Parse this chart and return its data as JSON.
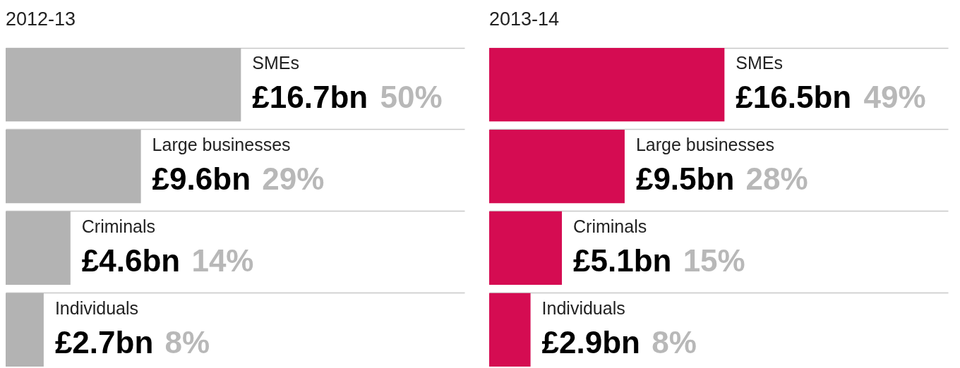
{
  "chart_data": [
    {
      "type": "bar",
      "orientation": "horizontal",
      "title": "2012-13",
      "categories": [
        "SMEs",
        "Large businesses",
        "Criminals",
        "Individuals"
      ],
      "grid": "y",
      "tick_labels": false,
      "series": [
        {
          "color": "#b3b3b3",
          "values": [
            16.7,
            9.6,
            4.6,
            2.7
          ],
          "value_labels": [
            "£16.7bn",
            "£9.6bn",
            "£4.6bn",
            "£2.7bn"
          ]
        }
      ],
      "annotations": [
        "50%",
        "29%",
        "14%",
        "8%"
      ]
    },
    {
      "type": "bar",
      "orientation": "horizontal",
      "title": "2013-14",
      "categories": [
        "SMEs",
        "Large businesses",
        "Criminals",
        "Individuals"
      ],
      "grid": "y",
      "tick_labels": false,
      "series": [
        {
          "color": "#d50c52",
          "values": [
            16.5,
            9.5,
            5.1,
            2.9
          ],
          "value_labels": [
            "£16.5bn",
            "£9.5bn",
            "£5.1bn",
            "£2.9bn"
          ]
        }
      ],
      "annotations": [
        "49%",
        "28%",
        "15%",
        "8%"
      ]
    }
  ]
}
